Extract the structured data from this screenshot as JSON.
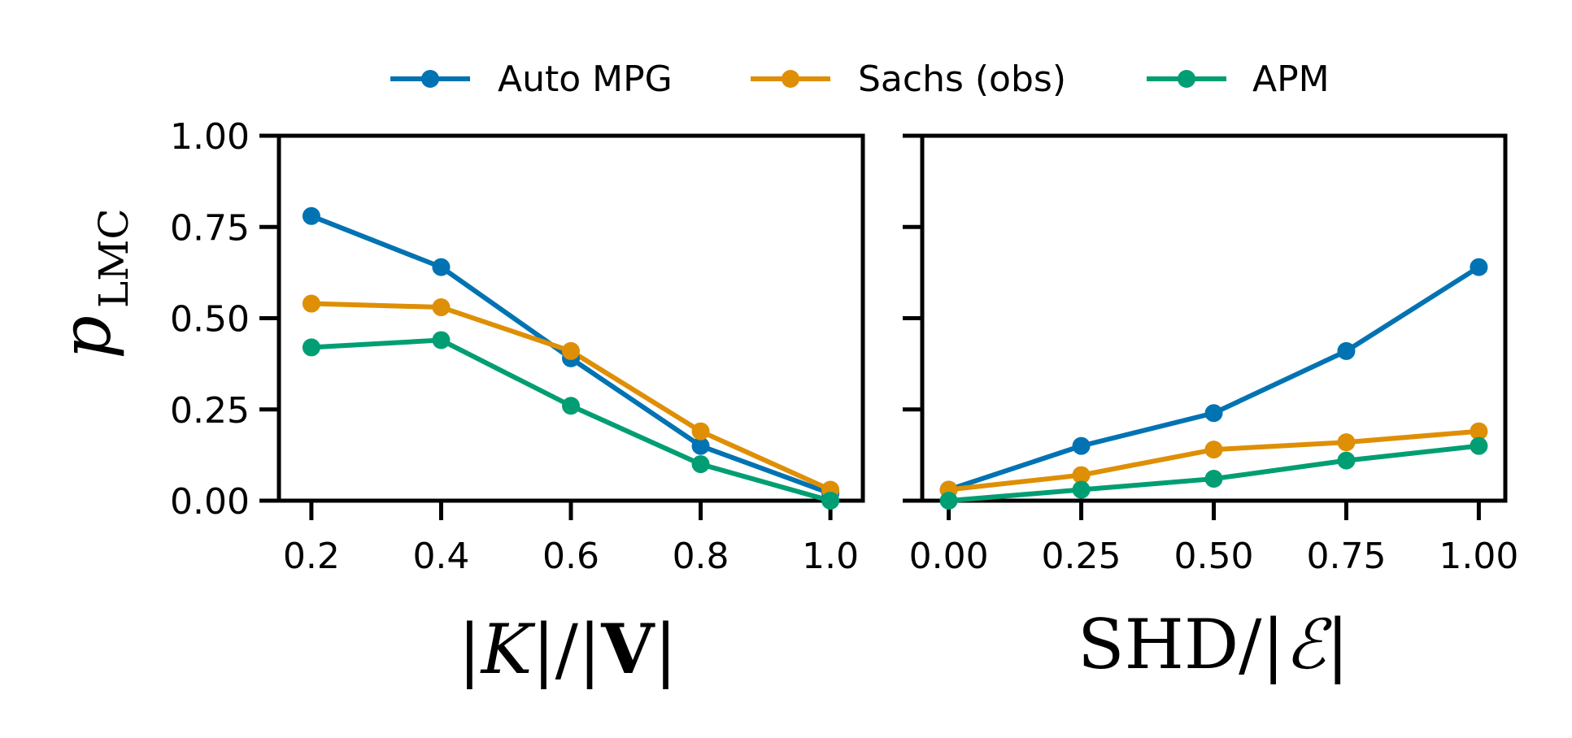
{
  "legend": {
    "items": [
      {
        "label": "Auto MPG",
        "color": "#0173b2"
      },
      {
        "label": "Sachs (obs)",
        "color": "#de8f05"
      },
      {
        "label": "APM",
        "color": "#029e73"
      }
    ]
  },
  "chart_data": [
    {
      "type": "line",
      "xlabel": "|K|/|V|",
      "ylabel": "p_LMC",
      "x": [
        0.2,
        0.4,
        0.6,
        0.8,
        1.0
      ],
      "xticks": [
        "0.2",
        "0.4",
        "0.6",
        "0.8",
        "1.0"
      ],
      "xlim": [
        0.15,
        1.05
      ],
      "ylim": [
        0,
        1
      ],
      "yticks": [
        "0.00",
        "0.25",
        "0.50",
        "0.75",
        "1.00"
      ],
      "grid": false,
      "series": [
        {
          "name": "Auto MPG",
          "color": "#0173b2",
          "values": [
            0.78,
            0.64,
            0.39,
            0.15,
            0.02
          ]
        },
        {
          "name": "Sachs (obs)",
          "color": "#de8f05",
          "values": [
            0.54,
            0.53,
            0.41,
            0.19,
            0.03
          ]
        },
        {
          "name": "APM",
          "color": "#029e73",
          "values": [
            0.42,
            0.44,
            0.26,
            0.1,
            0.0
          ]
        }
      ]
    },
    {
      "type": "line",
      "xlabel": "SHD/|ℰ|",
      "ylabel": "",
      "x": [
        0.0,
        0.25,
        0.5,
        0.75,
        1.0
      ],
      "xticks": [
        "0.00",
        "0.25",
        "0.50",
        "0.75",
        "1.00"
      ],
      "xlim": [
        -0.05,
        1.05
      ],
      "ylim": [
        0,
        1
      ],
      "yticks": [],
      "grid": false,
      "series": [
        {
          "name": "Auto MPG",
          "color": "#0173b2",
          "values": [
            0.03,
            0.15,
            0.24,
            0.41,
            0.64
          ]
        },
        {
          "name": "Sachs (obs)",
          "color": "#de8f05",
          "values": [
            0.03,
            0.07,
            0.14,
            0.16,
            0.19
          ]
        },
        {
          "name": "APM",
          "color": "#029e73",
          "values": [
            0.0,
            0.03,
            0.06,
            0.11,
            0.15
          ]
        }
      ]
    }
  ]
}
